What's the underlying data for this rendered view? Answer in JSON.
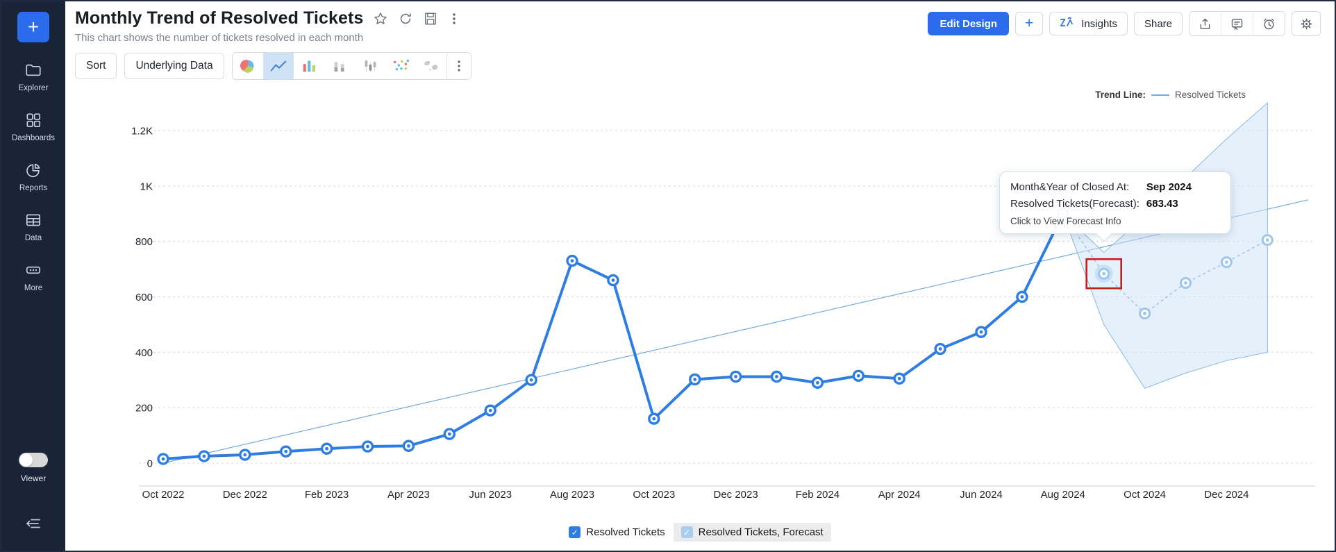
{
  "window": {
    "border_color": "#1f2940",
    "sidebar_color": "#1a2438"
  },
  "sidebar": {
    "add_button_label": "+",
    "items": [
      {
        "icon": "folder-icon",
        "label": "Explorer"
      },
      {
        "icon": "dashboards-grid-icon",
        "label": "Dashboards"
      },
      {
        "icon": "reports-pie-icon",
        "label": "Reports"
      },
      {
        "icon": "data-table-icon",
        "label": "Data"
      },
      {
        "icon": "more-ellipsis-icon",
        "label": "More"
      }
    ],
    "viewer_toggle": {
      "label": "Viewer",
      "state": "off"
    },
    "collapse_icon": "collapse-sidebar-icon"
  },
  "header": {
    "title": "Monthly Trend of Resolved Tickets",
    "subtitle": "This chart shows the number of tickets resolved in each month",
    "title_icons": [
      "star-icon",
      "refresh-icon",
      "save-icon",
      "kebab-menu-icon"
    ],
    "actions": {
      "edit_design": "Edit Design",
      "add": "+",
      "insights": "Insights",
      "share": "Share",
      "icon_buttons": [
        "export-icon",
        "comment-icon",
        "history-icon",
        "settings-gear-icon"
      ]
    }
  },
  "toolbar": {
    "sort": "Sort",
    "underlying_data": "Underlying Data",
    "chart_type_icons": [
      "pie-chart-icon",
      "line-chart-icon",
      "bar-chart-icon",
      "stacked-bar-icon",
      "grouped-bar-icon",
      "scatter-chart-icon",
      "map-chart-icon"
    ],
    "selected_chart_type": "line",
    "more_icon": "kebab-menu-icon"
  },
  "trend_legend": {
    "label": "Trend Line:",
    "series": "Resolved Tickets"
  },
  "tooltip": {
    "row1_label": "Month&Year of Closed At:",
    "row1_value": "Sep 2024",
    "row2_label": "Resolved Tickets(Forecast):",
    "row2_value": "683.43",
    "footer": "Click to View Forecast Info"
  },
  "legend": {
    "series1": "Resolved Tickets",
    "series2": "Resolved Tickets, Forecast"
  },
  "colors": {
    "accent_blue": "#2b6cec",
    "line_blue": "#2e7de2",
    "forecast_blue": "#9cc6ee",
    "band_fill": "#cfe3f5",
    "trendline_blue": "#74a9dd",
    "selection_red": "#c11f1f"
  },
  "chart_data": {
    "type": "line",
    "title": "Monthly Trend of Resolved Tickets",
    "xlabel": "Month&Year of Closed At",
    "ylabel": "Resolved Tickets",
    "ylim": [
      0,
      1200
    ],
    "grid": true,
    "y_ticks": [
      0,
      200,
      400,
      600,
      800,
      1000,
      1200
    ],
    "y_tick_labels": [
      "0",
      "200",
      "400",
      "600",
      "800",
      "1K",
      "1.2K"
    ],
    "months": [
      "Oct 2022",
      "Nov 2022",
      "Dec 2022",
      "Jan 2023",
      "Feb 2023",
      "Mar 2023",
      "Apr 2023",
      "May 2023",
      "Jun 2023",
      "Jul 2023",
      "Aug 2023",
      "Sep 2023",
      "Oct 2023",
      "Nov 2023",
      "Dec 2023",
      "Jan 2024",
      "Feb 2024",
      "Mar 2024",
      "Apr 2024",
      "May 2024",
      "Jun 2024",
      "Jul 2024",
      "Aug 2024",
      "Sep 2024",
      "Oct 2024",
      "Nov 2024",
      "Dec 2024",
      "Jan 2025"
    ],
    "x_tick_every": 2,
    "x_tick_labels": [
      "Oct 2022",
      "Dec 2022",
      "Feb 2023",
      "Apr 2023",
      "Jun 2023",
      "Aug 2023",
      "Oct 2023",
      "Dec 2023",
      "Feb 2024",
      "Apr 2024",
      "Jun 2024",
      "Aug 2024",
      "Oct 2024",
      "Dec 2024"
    ],
    "series": [
      {
        "name": "Resolved Tickets",
        "start_index": 0,
        "values": [
          15,
          25,
          30,
          42,
          52,
          60,
          62,
          105,
          190,
          300,
          730,
          660,
          160,
          302,
          312,
          312,
          290,
          315,
          305,
          412,
          473,
          600,
          900
        ]
      },
      {
        "name": "Resolved Tickets, Forecast",
        "start_index": 23,
        "values": [
          683.43,
          540,
          650,
          725,
          805
        ]
      }
    ],
    "confidence_band": {
      "start_index": 23,
      "lower": [
        500,
        270,
        325,
        370,
        400
      ],
      "upper": [
        760,
        890,
        1030,
        1170,
        1300
      ]
    },
    "trendline": {
      "name": "Resolved Tickets",
      "start_value": 0,
      "end_value": 950
    },
    "selected_point": {
      "series": "Resolved Tickets, Forecast",
      "month": "Sep 2024",
      "value": 683.43
    },
    "legend_position": "bottom"
  }
}
